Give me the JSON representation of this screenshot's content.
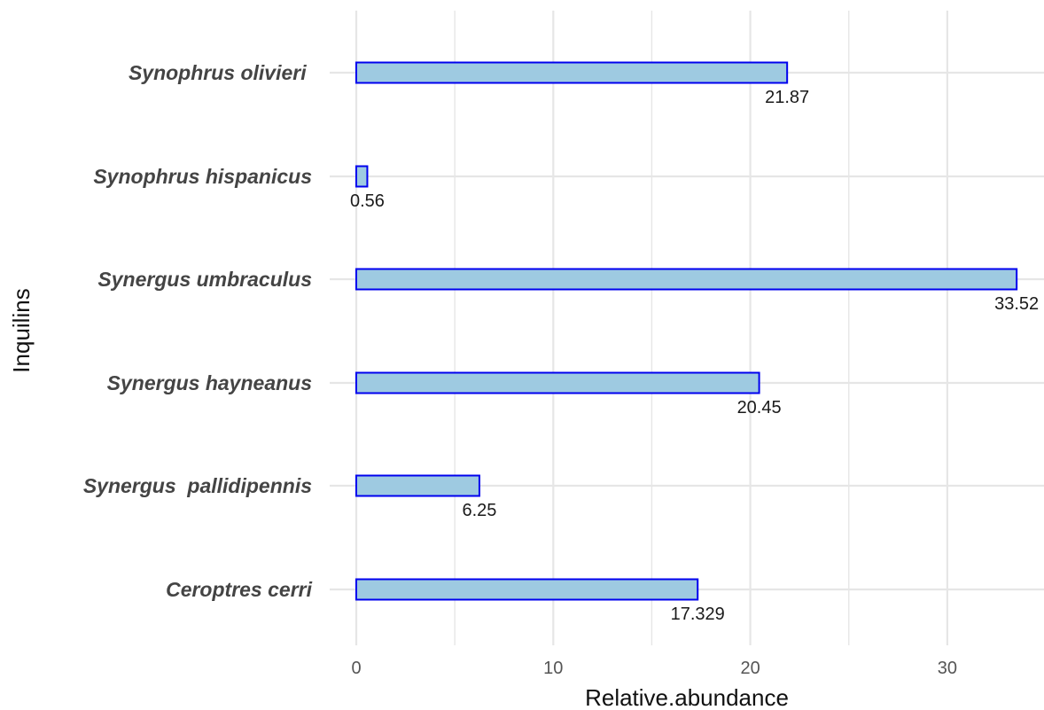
{
  "chart_data": {
    "type": "bar",
    "orientation": "horizontal",
    "categories": [
      "Synophrus olivieri ",
      "Synophrus hispanicus",
      "Synergus umbraculus",
      "Synergus hayneanus",
      "Synergus  pallidipennis",
      "Ceroptres cerri"
    ],
    "values": [
      21.87,
      0.56,
      33.52,
      20.45,
      6.25,
      17.329
    ],
    "data_labels": [
      "21.87",
      "0.56",
      "33.52",
      "20.45",
      "6.25",
      "17.329"
    ],
    "xlabel": "Relative.abundance",
    "ylabel": "Inquilins",
    "xlim": [
      0,
      35
    ],
    "x_ticks": [
      0,
      10,
      20,
      30
    ],
    "grid": true,
    "legend": "none",
    "colors": {
      "bar_fill": "#9ecae1",
      "bar_stroke": "#0000ee",
      "grid": "#e6e6e6"
    }
  }
}
